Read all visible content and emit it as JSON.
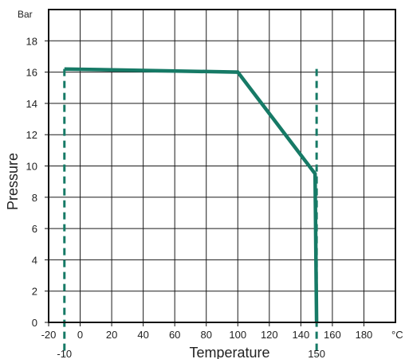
{
  "chart_data": {
    "type": "line",
    "xlabel": "Temperature",
    "ylabel": "Pressure",
    "x_unit": "°C",
    "y_unit": "Bar",
    "xlim": [
      -20,
      200
    ],
    "ylim": [
      0,
      20
    ],
    "x_ticks": [
      -20,
      0,
      20,
      40,
      60,
      80,
      100,
      120,
      140,
      160,
      180
    ],
    "y_ticks": [
      0,
      2,
      4,
      6,
      8,
      10,
      12,
      14,
      16,
      18
    ],
    "grid": true,
    "series": [
      {
        "color": "#167a66",
        "points": [
          [
            -10,
            16.2
          ],
          [
            100,
            16.0
          ],
          [
            149,
            9.5
          ],
          [
            150,
            0
          ]
        ]
      }
    ],
    "reference_lines": [
      {
        "x": -10,
        "label": "-10",
        "style": "dashed",
        "color": "#167a66"
      },
      {
        "x": 150,
        "label": "150",
        "style": "dashed",
        "color": "#167a66"
      }
    ]
  }
}
